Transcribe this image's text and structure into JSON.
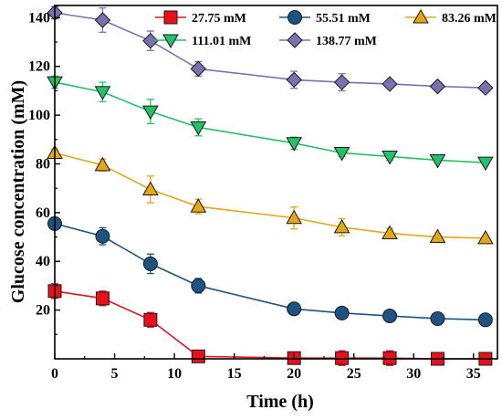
{
  "chart_data": {
    "type": "line",
    "xlabel": "Time (h)",
    "ylabel": "Glucose concentration (mM)",
    "xlim": [
      0,
      37
    ],
    "ylim": [
      0,
      145
    ],
    "xticks": [
      0,
      5,
      10,
      15,
      20,
      25,
      30,
      35
    ],
    "yticks": [
      20,
      40,
      60,
      80,
      100,
      120,
      140
    ],
    "legend_position": "top-right",
    "x": [
      0,
      4,
      8,
      12,
      20,
      24,
      28,
      32,
      36
    ],
    "series": [
      {
        "name": "27.75 mM",
        "color": "#e8101a",
        "marker": "square",
        "values": [
          27.8,
          24.8,
          16.0,
          1.0,
          0.3,
          0.3,
          0.3,
          0.0,
          0.0
        ],
        "errors": [
          3.0,
          3.0,
          3.0,
          2.0,
          2.0,
          3.0,
          3.0,
          0,
          0
        ]
      },
      {
        "name": "55.51 mM",
        "color": "#1d5283",
        "marker": "circle",
        "values": [
          55.5,
          50.3,
          39.0,
          30.0,
          20.5,
          18.8,
          17.6,
          16.5,
          16.0
        ],
        "errors": [
          2.5,
          3.5,
          4.0,
          3.0,
          2.0,
          1.0,
          0,
          0,
          0
        ]
      },
      {
        "name": "83.26 mM",
        "color": "#e3a719",
        "marker": "triangle-up",
        "values": [
          84.5,
          79.5,
          69.5,
          62.5,
          57.8,
          54.0,
          51.5,
          50.0,
          49.5
        ],
        "errors": [
          1.5,
          2.5,
          5.5,
          3.0,
          4.5,
          3.5,
          2.0,
          0,
          0
        ]
      },
      {
        "name": "111.01 mM",
        "color": "#23c168",
        "marker": "triangle-down",
        "values": [
          113.5,
          109.5,
          101.5,
          95.0,
          88.5,
          84.5,
          83.0,
          81.5,
          80.5
        ],
        "errors": [
          2.5,
          4.0,
          5.0,
          3.5,
          2.5,
          1.5,
          1.5,
          0,
          0
        ]
      },
      {
        "name": "138.77 mM",
        "color": "#7a71b2",
        "marker": "diamond",
        "values": [
          142.0,
          139.0,
          130.5,
          119.0,
          114.5,
          113.5,
          112.8,
          111.8,
          111.2
        ],
        "errors": [
          2.5,
          5.0,
          4.0,
          3.0,
          3.5,
          3.5,
          1.5,
          0,
          0
        ]
      }
    ]
  }
}
